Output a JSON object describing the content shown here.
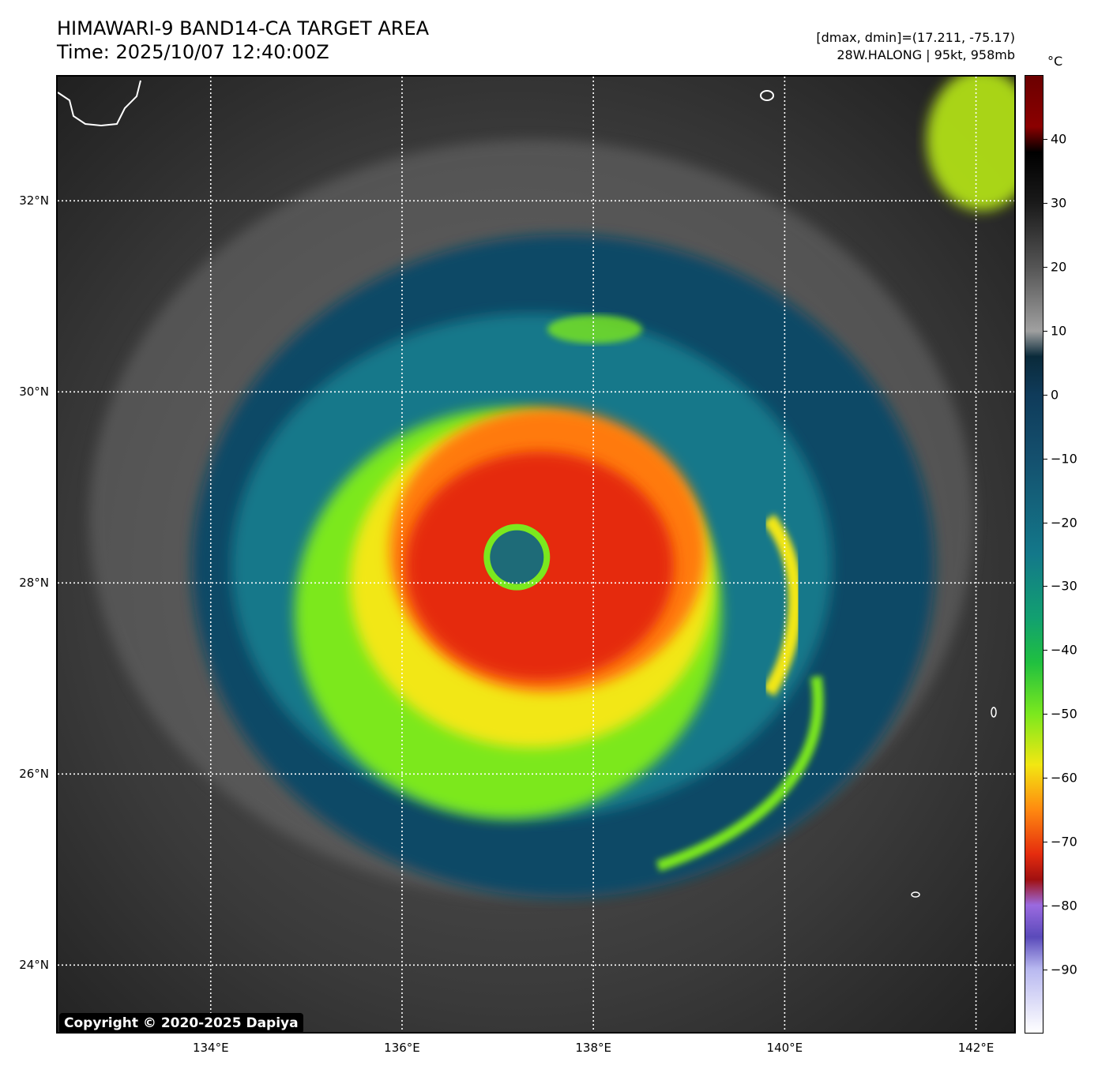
{
  "title": {
    "line1": "HIMAWARI-9 BAND14-CA TARGET AREA",
    "line2": "Time: 2025/10/07 12:40:00Z"
  },
  "info": {
    "line1": "[dmax, dmin]=(17.211, -75.17)",
    "line2": "28W.HALONG | 95kt, 958mb"
  },
  "map": {
    "lat_labels": [
      "32°N",
      "30°N",
      "28°N",
      "26°N",
      "24°N"
    ],
    "lon_labels": [
      "134°E",
      "136°E",
      "138°E",
      "140°E",
      "142°E"
    ],
    "lat_values": [
      32,
      30,
      28,
      26,
      24
    ],
    "lon_values": [
      134,
      136,
      138,
      140,
      142
    ],
    "lat_range": [
      23.3,
      33.3
    ],
    "lon_range": [
      132.4,
      142.4
    ],
    "storm_center": {
      "lat": 28.27,
      "lon": 137.2
    },
    "grid": true,
    "grid_style": "dotted white"
  },
  "colorbar": {
    "unit": "°C",
    "tick_labels": [
      "40",
      "30",
      "20",
      "10",
      "0",
      "−10",
      "−20",
      "−30",
      "−40",
      "−50",
      "−60",
      "−70",
      "−80",
      "−90"
    ],
    "tick_values": [
      40,
      30,
      20,
      10,
      0,
      -10,
      -20,
      -30,
      -40,
      -50,
      -60,
      -70,
      -80,
      -90
    ],
    "range": [
      -100,
      50
    ]
  },
  "copyright": "Copyright © 2020-2025 Dapiya",
  "colors": {
    "eye": "#1e6b78",
    "core_red": "#e52c0e",
    "inner_orange": "#ff7a10",
    "yellow": "#f2e712",
    "green": "#7be81e",
    "teal": "#14788a",
    "dark_blue": "#0f4a66",
    "background": "#2a2a2a"
  }
}
